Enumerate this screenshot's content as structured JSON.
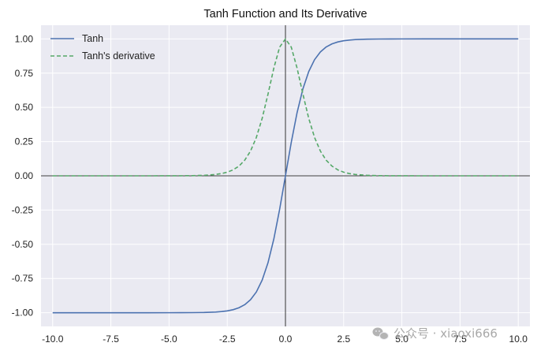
{
  "chart_data": {
    "type": "line",
    "title": "Tanh Function and Its Derivative",
    "xlabel": "",
    "ylabel": "",
    "xlim": [
      -10.5,
      10.5
    ],
    "ylim": [
      -1.1,
      1.1
    ],
    "x_ticks": [
      -10.0,
      -7.5,
      -5.0,
      -2.5,
      0.0,
      2.5,
      5.0,
      7.5,
      10.0
    ],
    "x_tick_labels": [
      "-10.0",
      "-7.5",
      "-5.0",
      "-2.5",
      "0.0",
      "2.5",
      "5.0",
      "7.5",
      "10.0"
    ],
    "y_ticks": [
      1.0,
      0.75,
      0.5,
      0.25,
      0.0,
      -0.25,
      -0.5,
      -0.75,
      -1.0
    ],
    "y_tick_labels": [
      "1.00",
      "0.75",
      "0.50",
      "0.25",
      "0.00",
      "-0.25",
      "-0.50",
      "-0.75",
      "-1.00"
    ],
    "grid": true,
    "legend_position": "top-left",
    "x": [
      -10,
      -9,
      -8,
      -7,
      -6,
      -5,
      -4.5,
      -4,
      -3.5,
      -3,
      -2.75,
      -2.5,
      -2.25,
      -2,
      -1.75,
      -1.5,
      -1.25,
      -1,
      -0.75,
      -0.5,
      -0.25,
      0,
      0.25,
      0.5,
      0.75,
      1,
      1.25,
      1.5,
      1.75,
      2,
      2.25,
      2.5,
      2.75,
      3,
      3.5,
      4,
      4.5,
      5,
      6,
      7,
      8,
      9,
      10
    ],
    "series": [
      {
        "name": "Tanh",
        "style": "solid",
        "color": "#4c72b0",
        "values": [
          -1.0,
          -1.0,
          -1.0,
          -1.0,
          -1.0,
          -0.9999,
          -0.9998,
          -0.9993,
          -0.9982,
          -0.9951,
          -0.9918,
          -0.9866,
          -0.978,
          -0.964,
          -0.9414,
          -0.9051,
          -0.8483,
          -0.7616,
          -0.6351,
          -0.4621,
          -0.2449,
          0.0,
          0.2449,
          0.4621,
          0.6351,
          0.7616,
          0.8483,
          0.9051,
          0.9414,
          0.964,
          0.978,
          0.9866,
          0.9918,
          0.9951,
          0.9982,
          0.9993,
          0.9998,
          0.9999,
          1.0,
          1.0,
          1.0,
          1.0,
          1.0
        ]
      },
      {
        "name": "Tanh's derivative",
        "style": "dashed",
        "color": "#55a868",
        "values": [
          0.0,
          0.0,
          0.0,
          0.0,
          0.0,
          0.0002,
          0.0005,
          0.0013,
          0.0036,
          0.0099,
          0.0163,
          0.0266,
          0.0435,
          0.0707,
          0.1138,
          0.1807,
          0.2805,
          0.42,
          0.5966,
          0.7864,
          0.94,
          1.0,
          0.94,
          0.7864,
          0.5966,
          0.42,
          0.2805,
          0.1807,
          0.1138,
          0.0707,
          0.0435,
          0.0266,
          0.0163,
          0.0099,
          0.0036,
          0.0013,
          0.0005,
          0.0002,
          0.0,
          0.0,
          0.0,
          0.0,
          0.0
        ]
      }
    ],
    "colors": {
      "background": "#eaeaf2",
      "grid": "#ffffff",
      "axis_lines": "#000000"
    }
  },
  "watermark": {
    "icon": "wechat-icon",
    "text": "公众号 · xiaoxi666"
  }
}
